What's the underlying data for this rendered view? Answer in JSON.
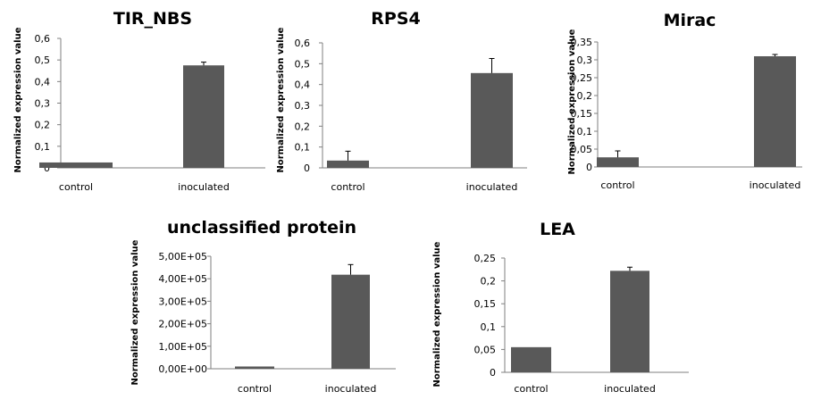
{
  "figure": {
    "bar_color": "#595959",
    "axis_color": "#7f7f7f",
    "errorbar_color": "#000000"
  },
  "chart_data": [
    {
      "type": "bar",
      "title": "TIR_NBS",
      "ylabel": "Normalized expression value",
      "categories": [
        "control",
        "inoculated"
      ],
      "values": [
        0.025,
        0.475
      ],
      "errors": [
        0,
        0.015
      ],
      "ylim": [
        0,
        0.6
      ],
      "yticks": [
        0,
        0.1,
        0.2,
        0.3,
        0.4,
        0.5,
        0.6
      ],
      "ytick_labels": [
        "0",
        "0,1",
        "0,2",
        "0,3",
        "0,4",
        "0,5",
        "0,6"
      ]
    },
    {
      "type": "bar",
      "title": "RPS4",
      "ylabel": "Normalized expression value",
      "categories": [
        "control",
        "inoculated"
      ],
      "values": [
        0.035,
        0.455
      ],
      "errors": [
        0.045,
        0.07
      ],
      "ylim": [
        0,
        0.6
      ],
      "yticks": [
        0,
        0.1,
        0.2,
        0.3,
        0.4,
        0.5,
        0.6
      ],
      "ytick_labels": [
        "0",
        "0,1",
        "0,2",
        "0,3",
        "0,4",
        "0,5",
        "0,6"
      ]
    },
    {
      "type": "bar",
      "title": "Mirac",
      "ylabel": "Normalized expression value",
      "categories": [
        "control",
        "inoculated"
      ],
      "values": [
        0.027,
        0.31
      ],
      "errors": [
        0.018,
        0.005
      ],
      "ylim": [
        0,
        0.35
      ],
      "yticks": [
        0,
        0.05,
        0.1,
        0.15,
        0.2,
        0.25,
        0.3,
        0.35
      ],
      "ytick_labels": [
        "0",
        "0,05",
        "0,1",
        "0,15",
        "0,2",
        "0,25",
        "0,3",
        "0,35"
      ]
    },
    {
      "type": "bar",
      "title": "unclassified protein",
      "ylabel": "Normalized expression value",
      "categories": [
        "control",
        "inoculated"
      ],
      "values": [
        10000,
        418000
      ],
      "errors": [
        0,
        45000
      ],
      "ylim": [
        0,
        500000
      ],
      "yticks": [
        0,
        100000,
        200000,
        300000,
        400000,
        500000
      ],
      "ytick_labels": [
        "0,00E+00",
        "1,00E+05",
        "2,00E+05",
        "3,00E+05",
        "4,00E+05",
        "5,00E+05"
      ]
    },
    {
      "type": "bar",
      "title": "LEA",
      "ylabel": "Normalized expression value",
      "categories": [
        "control",
        "inoculated"
      ],
      "values": [
        0.055,
        0.222
      ],
      "errors": [
        0,
        0.008
      ],
      "ylim": [
        0,
        0.25
      ],
      "yticks": [
        0,
        0.05,
        0.1,
        0.15,
        0.2,
        0.25
      ],
      "ytick_labels": [
        "0",
        "0,05",
        "0,1",
        "0,15",
        "0,2",
        "0,25"
      ]
    }
  ]
}
